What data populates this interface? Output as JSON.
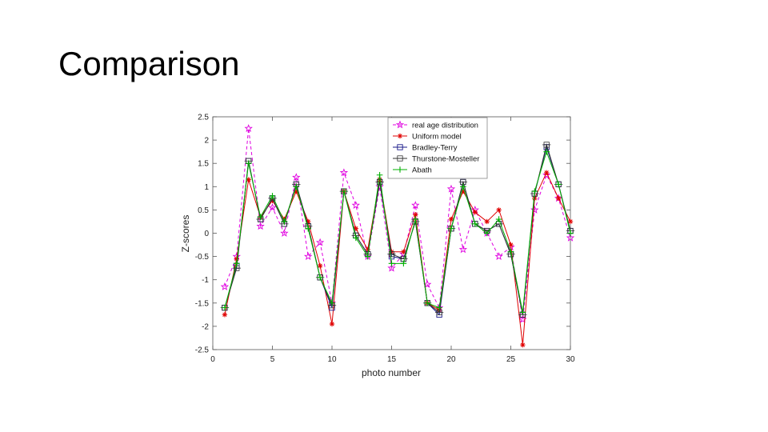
{
  "slide": {
    "title": "Comparison"
  },
  "chart_data": {
    "type": "line",
    "xlabel": "photo number",
    "ylabel": "Z-scores",
    "xlim": [
      0,
      30
    ],
    "ylim": [
      -2.5,
      2.5
    ],
    "xticks": [
      "0",
      "5",
      "10",
      "15",
      "20",
      "25",
      "30"
    ],
    "yticks": [
      "2.5",
      "2",
      "1.5",
      "1",
      "0.5",
      "0",
      "-0.5",
      "-1",
      "-1.5",
      "-2",
      "-2.5"
    ],
    "legend_position": "top-right",
    "x": [
      1,
      2,
      3,
      4,
      5,
      6,
      7,
      8,
      9,
      10,
      11,
      12,
      13,
      14,
      15,
      16,
      17,
      18,
      19,
      20,
      21,
      22,
      23,
      24,
      25,
      26,
      27,
      28,
      29,
      30
    ],
    "series": [
      {
        "name": "real age distribution",
        "color": "#e000e0",
        "marker": "star",
        "dash": "4,3",
        "values": [
          -1.15,
          -0.5,
          2.25,
          0.15,
          0.55,
          0.0,
          1.2,
          -0.5,
          -0.2,
          -1.5,
          1.3,
          0.6,
          -0.5,
          1.0,
          -0.75,
          -0.45,
          0.6,
          -1.1,
          -1.6,
          0.95,
          -0.35,
          0.5,
          0.0,
          -0.5,
          -0.3,
          -1.85,
          0.5,
          1.25,
          0.75,
          -0.1
        ]
      },
      {
        "name": "Uniform model",
        "color": "#e00000",
        "marker": "asterisk",
        "dash": "",
        "values": [
          -1.75,
          -0.55,
          1.15,
          0.35,
          0.7,
          0.3,
          0.9,
          0.25,
          -0.7,
          -1.95,
          0.9,
          0.1,
          -0.35,
          1.15,
          -0.4,
          -0.4,
          0.4,
          -1.5,
          -1.65,
          0.3,
          0.9,
          0.45,
          0.25,
          0.5,
          -0.25,
          -2.4,
          0.75,
          1.3,
          0.75,
          0.25
        ]
      },
      {
        "name": "Bradley-Terry",
        "color": "#1a1a8a",
        "marker": "square",
        "dash": "",
        "values": [
          -1.6,
          -0.7,
          1.55,
          0.3,
          0.75,
          0.2,
          1.05,
          0.15,
          -0.95,
          -1.6,
          0.9,
          -0.05,
          -0.45,
          1.1,
          -0.5,
          -0.55,
          0.25,
          -1.5,
          -1.75,
          0.1,
          1.1,
          0.2,
          0.05,
          0.2,
          -0.45,
          -1.75,
          0.85,
          1.85,
          1.05,
          0.05
        ]
      },
      {
        "name": "Thurstone-Mosteller",
        "color": "#333333",
        "marker": "square-cross",
        "dash": "",
        "values": [
          -1.6,
          -0.75,
          1.55,
          0.3,
          0.75,
          0.2,
          1.05,
          0.15,
          -0.95,
          -1.55,
          0.9,
          -0.05,
          -0.45,
          1.1,
          -0.45,
          -0.55,
          0.25,
          -1.5,
          -1.7,
          0.1,
          1.1,
          0.2,
          0.05,
          0.2,
          -0.45,
          -1.75,
          0.85,
          1.9,
          1.05,
          0.05
        ]
      },
      {
        "name": "Abath",
        "color": "#00b000",
        "marker": "plus",
        "dash": "",
        "values": [
          -1.6,
          -0.65,
          1.5,
          0.35,
          0.8,
          0.25,
          1.0,
          0.1,
          -0.95,
          -1.5,
          0.9,
          -0.1,
          -0.5,
          1.25,
          -0.65,
          -0.65,
          0.3,
          -1.5,
          -1.6,
          0.1,
          1.0,
          0.2,
          0.0,
          0.3,
          -0.4,
          -1.7,
          0.9,
          1.75,
          1.05,
          0.0
        ]
      }
    ]
  }
}
